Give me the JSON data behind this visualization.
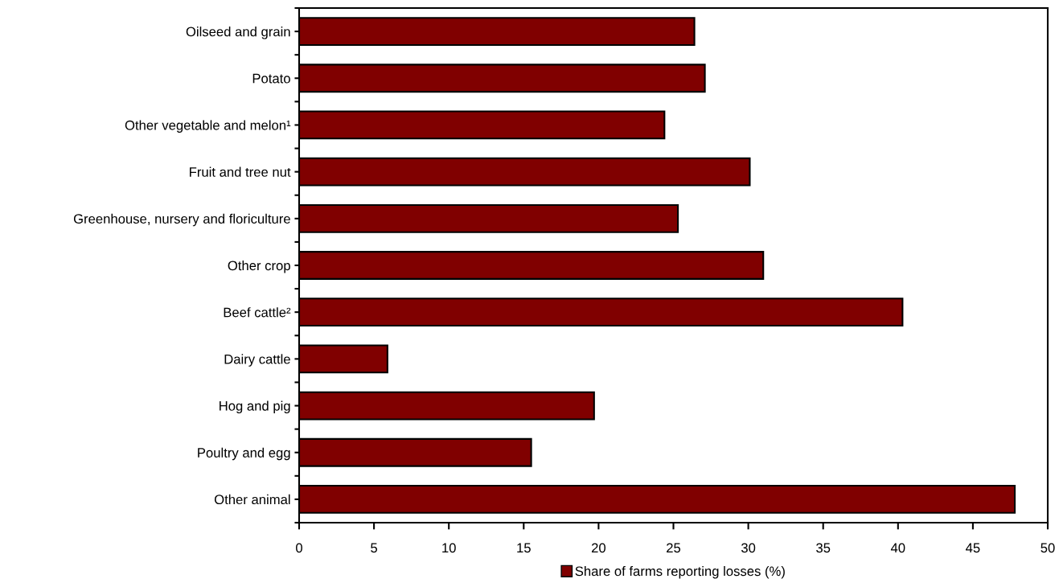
{
  "chart_data": {
    "type": "bar",
    "orientation": "horizontal",
    "categories": [
      "Oilseed and grain",
      "Potato",
      "Other vegetable and melon¹",
      "Fruit and tree nut",
      "Greenhouse, nursery and floriculture",
      "Other crop",
      "Beef cattle²",
      "Dairy cattle",
      "Hog and pig",
      "Poultry and egg",
      "Other animal"
    ],
    "series": [
      {
        "name": "Share of farms reporting losses (%)",
        "color": "#800000",
        "values": [
          26.4,
          27.1,
          24.4,
          30.1,
          25.3,
          31.0,
          40.3,
          5.9,
          19.7,
          15.5,
          47.8
        ]
      }
    ],
    "xlim": [
      0,
      50
    ],
    "xticks": [
      0,
      5,
      10,
      15,
      20,
      25,
      30,
      35,
      40,
      45,
      50
    ],
    "grid": false,
    "legend": "bottom"
  }
}
